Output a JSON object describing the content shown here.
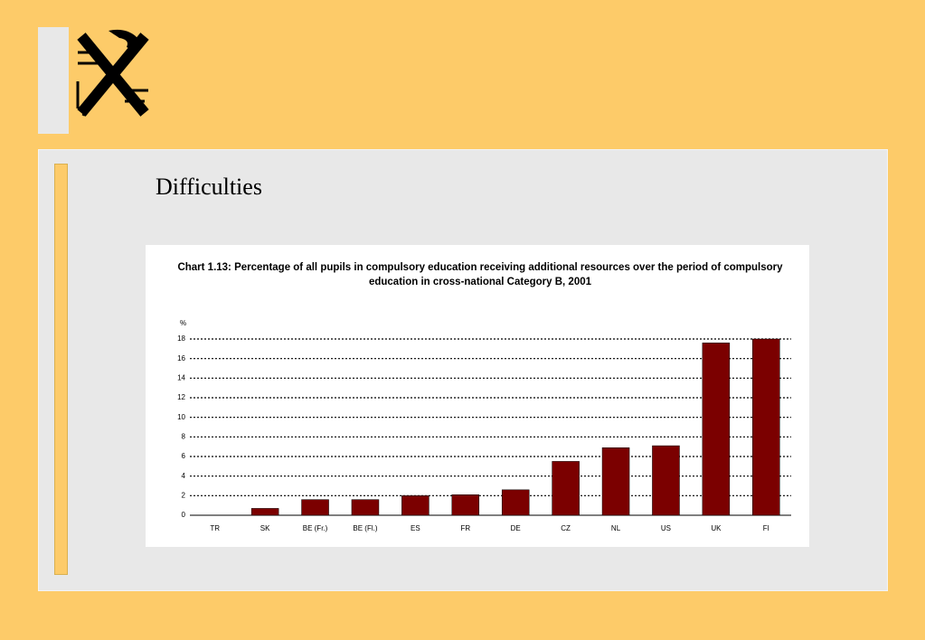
{
  "slide": {
    "heading": "Difficulties"
  },
  "chart_data": {
    "type": "bar",
    "title": "Chart 1.13: Percentage of all pupils in compulsory education receiving additional resources over the period of compulsory education in cross-national Category B, 2001",
    "y_label": "%",
    "categories": [
      "TR",
      "SK",
      "BE (Fr.)",
      "BE (Fl.)",
      "ES",
      "FR",
      "DE",
      "CZ",
      "NL",
      "US",
      "UK",
      "FI"
    ],
    "values": [
      0,
      0.7,
      1.6,
      1.6,
      2.0,
      2.1,
      2.6,
      5.5,
      6.9,
      7.1,
      17.6,
      18.0
    ],
    "color": "#7b0000",
    "ylim": [
      0,
      18
    ],
    "yticks": [
      0,
      2,
      4,
      6,
      8,
      10,
      12,
      14,
      16,
      18
    ],
    "grid": true
  }
}
